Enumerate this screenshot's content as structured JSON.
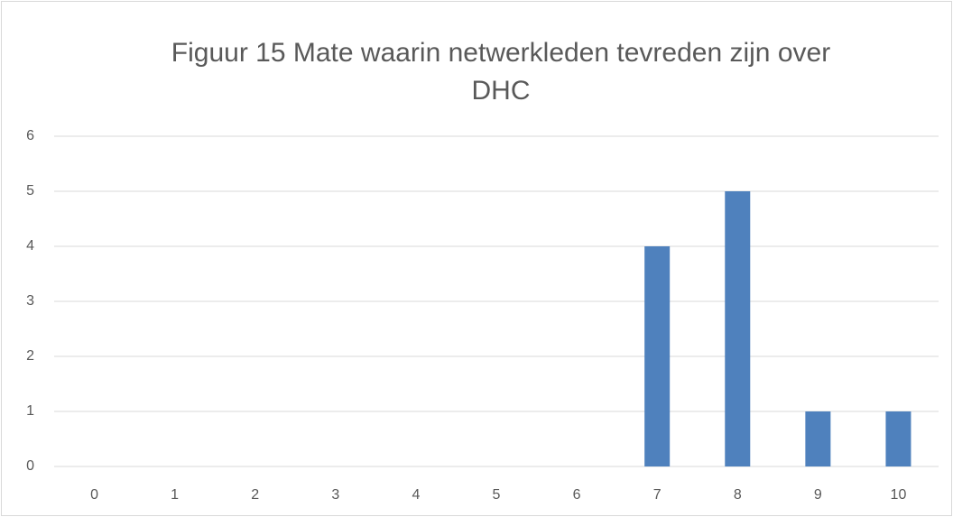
{
  "chart_data": {
    "type": "bar",
    "title": "Figuur 15 Mate waarin netwerkleden tevreden zijn over DHC",
    "categories": [
      "0",
      "1",
      "2",
      "3",
      "4",
      "5",
      "6",
      "7",
      "8",
      "9",
      "10"
    ],
    "values": [
      0,
      0,
      0,
      0,
      0,
      0,
      0,
      4,
      5,
      1,
      1
    ],
    "color": "#4f81bd",
    "ylim": [
      0,
      6
    ],
    "yticks": [
      0,
      1,
      2,
      3,
      4,
      5,
      6
    ],
    "grid": true
  }
}
